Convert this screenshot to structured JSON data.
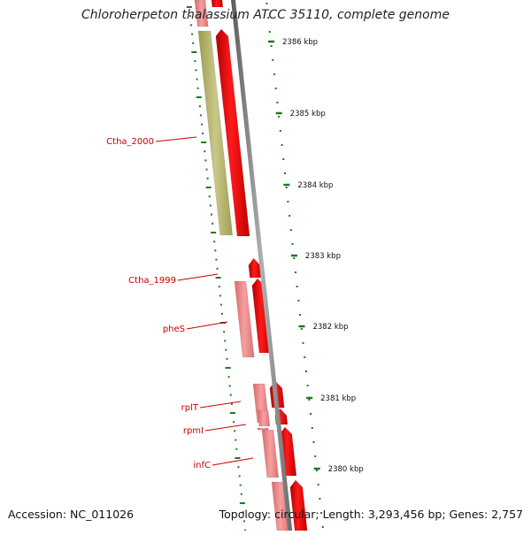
{
  "title": "Chloroherpeton thalassium ATCC 35110, complete genome",
  "footer": {
    "accession": "Accession: NC_011026",
    "summary": "Topology: circular; Length: 3,293,456 bp; Genes: 2,757"
  },
  "colors": {
    "gene_forward": "#ff0000",
    "gene_reverse_light": "#f08080",
    "rrna_olive": "#b5b56b",
    "tick_green": "#1f7a1f",
    "backbone": "#808080",
    "label_red": "#cc0000"
  },
  "kbp_ticks": [
    "2386 kbp",
    "2385 kbp",
    "2384 kbp",
    "2383 kbp",
    "2382 kbp",
    "2381 kbp",
    "2380 kbp"
  ],
  "gene_labels": [
    "Ctha_2000",
    "Ctha_1999",
    "pheS",
    "rplT",
    "rpmI",
    "infC"
  ]
}
